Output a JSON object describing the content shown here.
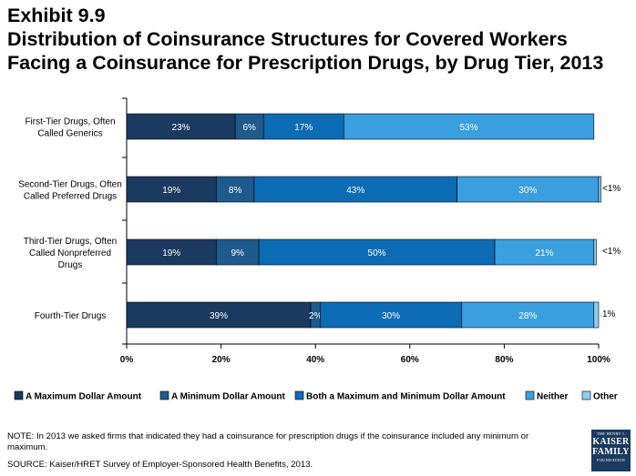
{
  "title_lines": [
    "Exhibit 9.9",
    "Distribution of Coinsurance Structures for Covered Workers",
    "Facing a Coinsurance for Prescription Drugs, by Drug Tier,  2013"
  ],
  "chart_data": {
    "type": "bar",
    "orientation": "horizontal",
    "stacked": true,
    "categories": [
      [
        "First-Tier Drugs, Often",
        "Called Generics"
      ],
      [
        "Second-Tier Drugs, Often",
        "Called Preferred Drugs"
      ],
      [
        "Third-Tier Drugs, Often",
        "Called Nonpreferred",
        "Drugs"
      ],
      [
        "Fourth-Tier Drugs"
      ]
    ],
    "series": [
      {
        "name": "A Maximum Dollar Amount",
        "color": "#1b3a5f",
        "values": [
          23,
          19,
          19,
          39
        ],
        "labels": [
          "23%",
          "19%",
          "19%",
          "39%"
        ]
      },
      {
        "name": "A Minimum Dollar Amount",
        "color": "#1f5a8c",
        "values": [
          6,
          8,
          9,
          2
        ],
        "labels": [
          "6%",
          "8%",
          "9%",
          "2%"
        ]
      },
      {
        "name": "Both a Maximum and Minimum Dollar Amount",
        "color": "#0b6cb4",
        "values": [
          17,
          43,
          50,
          30
        ],
        "labels": [
          "17%",
          "43%",
          "50%",
          "30%"
        ]
      },
      {
        "name": "Neither",
        "color": "#3a9fde",
        "values": [
          53,
          30,
          21,
          28
        ],
        "labels": [
          "53%",
          "30%",
          "21%",
          "28%"
        ]
      },
      {
        "name": "Other",
        "color": "#8fcdf0",
        "values": [
          0,
          0.5,
          0.5,
          1
        ],
        "labels": [
          "",
          "<1%",
          "<1%",
          "1%"
        ],
        "label_outside": true
      }
    ],
    "x_axis": {
      "range": [
        0,
        100
      ],
      "ticks": [
        0,
        20,
        40,
        60,
        80,
        100
      ],
      "tick_labels": [
        "0%",
        "20%",
        "40%",
        "60%",
        "80%",
        "100%"
      ]
    },
    "legend_position": "bottom"
  },
  "footer": {
    "note": "NOTE: In 2013 we asked firms that indicated they had a coinsurance for prescription drugs if the coinsurance included any minimum or maximum.",
    "source": "SOURCE: Kaiser/HRET Survey of Employer-Sponsored Health Benefits, 2013."
  },
  "logo": {
    "line1": "THE HENRY J.",
    "line2": "KAISER",
    "line3": "FAMILY",
    "line4": "FOUNDATION"
  }
}
